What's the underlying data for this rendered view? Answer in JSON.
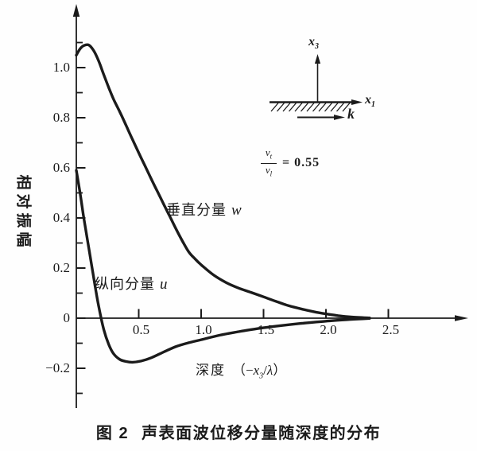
{
  "figure_caption": {
    "prefix": "图 2",
    "text": "声表面波位移分量随深度的分布"
  },
  "chart_data": {
    "type": "line",
    "title": "",
    "ylabel": "相对振幅",
    "xlabel": {
      "prefix": "深度",
      "open": "（−",
      "x_base": "x",
      "x_sub": "3",
      "slash": "/",
      "lambda": "λ",
      "close": "）"
    },
    "xlim": [
      0,
      3.1
    ],
    "ylim": [
      -0.36,
      1.24
    ],
    "grid": false,
    "legend": "inline-labels",
    "x_ticks": {
      "values": [
        0.5,
        1.0,
        1.5,
        2.0,
        2.5
      ],
      "labels": [
        "0.5",
        "1.0",
        "1.5",
        "2.0",
        "2.5"
      ]
    },
    "y_ticks": {
      "values": [
        1.0,
        0.8,
        0.6,
        0.4,
        0.2,
        0,
        -0.2
      ],
      "labels": [
        "1.0",
        "0.8",
        "0.6",
        "0.4",
        "0.2",
        "0",
        "−0.2"
      ]
    },
    "y_minor_ticks": [
      1.1,
      0.9,
      0.7,
      0.5,
      0.3,
      0.1,
      -0.1,
      -0.3
    ],
    "series": [
      {
        "name": "垂直分量 w",
        "label": "垂直分量",
        "symbol": "w",
        "x": [
          0,
          0.03,
          0.06,
          0.1,
          0.14,
          0.18,
          0.22,
          0.26,
          0.3,
          0.35,
          0.4,
          0.45,
          0.5,
          0.55,
          0.6,
          0.65,
          0.7,
          0.75,
          0.8,
          0.85,
          0.9,
          0.95,
          1.0,
          1.1,
          1.2,
          1.3,
          1.4,
          1.5,
          1.6,
          1.7,
          1.8,
          1.9,
          2.0,
          2.1,
          2.2,
          2.35
        ],
        "y": [
          1.05,
          1.075,
          1.088,
          1.09,
          1.067,
          1.025,
          0.972,
          0.92,
          0.872,
          0.822,
          0.768,
          0.713,
          0.66,
          0.608,
          0.556,
          0.505,
          0.455,
          0.405,
          0.355,
          0.308,
          0.265,
          0.237,
          0.213,
          0.172,
          0.142,
          0.12,
          0.103,
          0.085,
          0.067,
          0.05,
          0.037,
          0.026,
          0.017,
          0.01,
          0.005,
          0.001
        ]
      },
      {
        "name": "纵向分量 u",
        "label": "纵向分量",
        "symbol": "u",
        "x": [
          0,
          0.03,
          0.06,
          0.09,
          0.12,
          0.15,
          0.18,
          0.22,
          0.26,
          0.3,
          0.35,
          0.4,
          0.45,
          0.52,
          0.6,
          0.7,
          0.8,
          0.9,
          1.0,
          1.15,
          1.3,
          1.45,
          1.6,
          1.8,
          2.0,
          2.2,
          2.35
        ],
        "y": [
          0.59,
          0.5,
          0.4,
          0.31,
          0.22,
          0.13,
          0.045,
          -0.045,
          -0.105,
          -0.143,
          -0.165,
          -0.173,
          -0.176,
          -0.171,
          -0.158,
          -0.135,
          -0.113,
          -0.098,
          -0.086,
          -0.068,
          -0.054,
          -0.042,
          -0.032,
          -0.021,
          -0.012,
          -0.005,
          -0.001
        ]
      }
    ]
  },
  "inset": {
    "x3_base": "x",
    "x3_sub": "3",
    "x1_base": "x",
    "x1_sub": "1",
    "k_label": "k",
    "ratio": {
      "num_base": "v",
      "num_sub": "t",
      "den_base": "v",
      "den_sub": "l",
      "rhs": "= 0.55"
    }
  },
  "colors": {
    "ink": "#1b1b1b",
    "paper": "#fefefe"
  }
}
